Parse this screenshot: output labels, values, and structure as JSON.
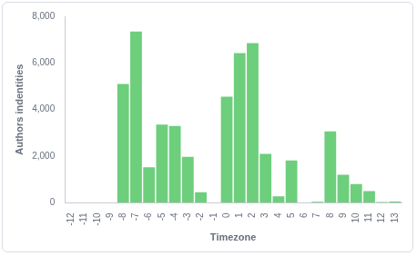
{
  "chart_data": {
    "type": "bar",
    "x_label": "Timezone",
    "y_label": "Authors indentities",
    "categories": [
      "-12",
      "-11",
      "-10",
      "-9",
      "-8",
      "-7",
      "-6",
      "-5",
      "-4",
      "-3",
      "-2",
      "-1",
      "0",
      "1",
      "2",
      "3",
      "4",
      "5",
      "6",
      "7",
      "8",
      "9",
      "10",
      "11",
      "12",
      "13"
    ],
    "values": [
      0,
      0,
      0,
      0,
      5100,
      7350,
      1520,
      3350,
      3300,
      1970,
      450,
      0,
      4550,
      6420,
      6850,
      2100,
      280,
      1820,
      0,
      40,
      3060,
      1200,
      800,
      500,
      30,
      50
    ],
    "color": "#6dce7c",
    "ylim": [
      0,
      8000
    ],
    "yticks": [
      0,
      {
        "value": 2000,
        "label": "2,000"
      },
      {
        "value": 4000,
        "label": "4,000"
      },
      {
        "value": 6000,
        "label": "6,000"
      },
      {
        "value": 8000,
        "label": "8,000"
      }
    ],
    "grid": false
  }
}
